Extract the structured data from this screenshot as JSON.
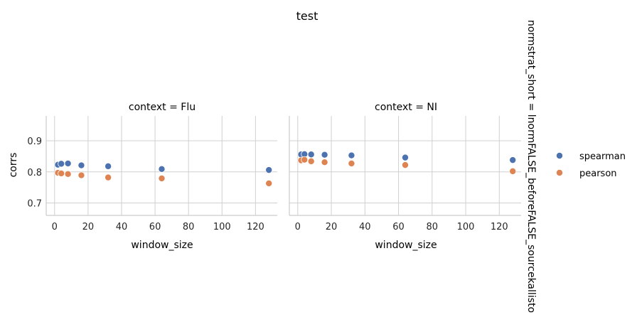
{
  "figure": {
    "suptitle": "test",
    "row_label": "normstrat_short = lnormFALSE_beforeFALSE_sourcekallisto"
  },
  "colors": {
    "spearman": "#4c72b0",
    "pearson": "#dd8452",
    "grid": "#d0d0d0",
    "spine": "#cccccc"
  },
  "legend": {
    "entries": [
      {
        "label": "spearman",
        "color_key": "spearman"
      },
      {
        "label": "pearson",
        "color_key": "pearson"
      }
    ],
    "placement": "right"
  },
  "chart_data": [
    {
      "type": "scatter",
      "title": "context = Flu",
      "xlabel": "window_size",
      "ylabel": "corrs",
      "xlim": [
        -5,
        133
      ],
      "ylim": [
        0.66,
        0.98
      ],
      "xticks": [
        0,
        20,
        40,
        60,
        80,
        100,
        120
      ],
      "yticks": [
        0.7,
        0.8,
        0.9
      ],
      "xtick_labels": [
        "0",
        "20",
        "40",
        "60",
        "80",
        "100",
        "120"
      ],
      "ytick_labels": [
        "0.7",
        "0.8",
        "0.9"
      ],
      "grid": true,
      "series": [
        {
          "name": "spearman",
          "x": [
            2,
            4,
            8,
            16,
            32,
            64,
            128
          ],
          "y": [
            0.823,
            0.826,
            0.827,
            0.821,
            0.818,
            0.809,
            0.806
          ]
        },
        {
          "name": "pearson",
          "x": [
            2,
            4,
            8,
            16,
            32,
            64,
            128
          ],
          "y": [
            0.797,
            0.795,
            0.793,
            0.789,
            0.782,
            0.779,
            0.763
          ]
        }
      ]
    },
    {
      "type": "scatter",
      "title": "context = NI",
      "xlabel": "window_size",
      "ylabel": "",
      "xlim": [
        -5,
        133
      ],
      "ylim": [
        0.66,
        0.98
      ],
      "xticks": [
        0,
        20,
        40,
        60,
        80,
        100,
        120
      ],
      "yticks": [
        0.7,
        0.8,
        0.9
      ],
      "xtick_labels": [
        "0",
        "20",
        "40",
        "60",
        "80",
        "100",
        "120"
      ],
      "ytick_labels": [],
      "grid": true,
      "series": [
        {
          "name": "spearman",
          "x": [
            2,
            4,
            8,
            16,
            32,
            64,
            128
          ],
          "y": [
            0.856,
            0.857,
            0.856,
            0.855,
            0.853,
            0.846,
            0.838
          ]
        },
        {
          "name": "pearson",
          "x": [
            2,
            4,
            8,
            16,
            32,
            64,
            128
          ],
          "y": [
            0.837,
            0.839,
            0.834,
            0.831,
            0.827,
            0.822,
            0.802
          ]
        }
      ]
    }
  ]
}
